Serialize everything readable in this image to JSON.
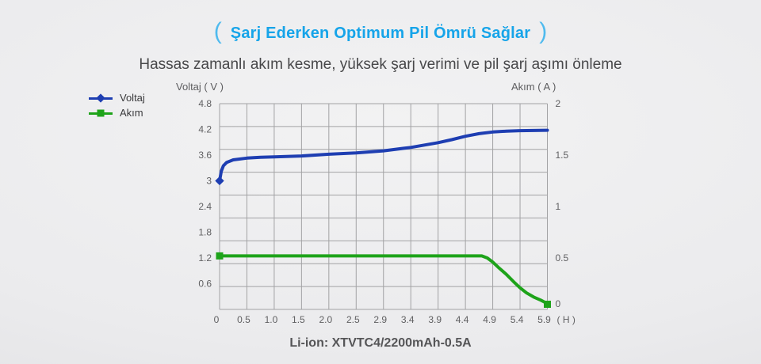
{
  "page": {
    "title": "Şarj Ederken Optimum Pil Ömrü Sağlar",
    "title_bracket_left": "(",
    "title_bracket_right": ")",
    "subtitle": "Hassas zamanlı akım kesme, yüksek şarj verimi ve pil şarj aşımı önleme",
    "caption": "Li-ion: XTVTC4/2200mAh-0.5A"
  },
  "colors": {
    "title_blue": "#16a4e9",
    "bracket_blue": "#4fbaee",
    "voltage_blue": "#1e3eb2",
    "current_green": "#1ea31a",
    "grid_gray": "#a2a2a4",
    "text_gray": "#5d5d5f"
  },
  "legend": {
    "items": [
      {
        "label": "Voltaj",
        "marker": "diamond",
        "color": "#1e3eb2"
      },
      {
        "label": "Akım",
        "marker": "square",
        "color": "#1ea31a"
      }
    ]
  },
  "chart_data": {
    "type": "line",
    "grid": true,
    "x_axis": {
      "unit_label": "( H )",
      "tick_labels": [
        "0",
        "0.5",
        "1.0",
        "1.5",
        "2.0",
        "2.5",
        "2.9",
        "3.4",
        "3.9",
        "4.4",
        "4.9",
        "5.4",
        "5.9"
      ]
    },
    "y_left": {
      "label": "Voltaj ( V )",
      "min": 0,
      "max": 4.8,
      "tick_labels": [
        "4.8",
        "4.2",
        "3.6",
        "3",
        "2.4",
        "1.8",
        "1.2",
        "0.6"
      ]
    },
    "y_right": {
      "label": "Akım ( A )",
      "min": 0,
      "max": 2,
      "tick_labels": [
        "2",
        "1.5",
        "1",
        "0.5",
        "0"
      ]
    },
    "series": [
      {
        "name": "Voltaj",
        "axis": "left",
        "color": "#1e3eb2",
        "marker": "diamond",
        "marker_at": [
          "first"
        ],
        "points": [
          [
            0,
            3.0
          ],
          [
            0.03,
            3.22
          ],
          [
            0.07,
            3.35
          ],
          [
            0.13,
            3.43
          ],
          [
            0.25,
            3.49
          ],
          [
            0.5,
            3.53
          ],
          [
            0.75,
            3.55
          ],
          [
            1.0,
            3.56
          ],
          [
            1.5,
            3.58
          ],
          [
            2.0,
            3.62
          ],
          [
            2.5,
            3.65
          ],
          [
            2.9,
            3.7
          ],
          [
            3.4,
            3.78
          ],
          [
            3.9,
            3.89
          ],
          [
            4.15,
            3.96
          ],
          [
            4.4,
            4.04
          ],
          [
            4.65,
            4.1
          ],
          [
            4.9,
            4.14
          ],
          [
            5.15,
            4.16
          ],
          [
            5.4,
            4.17
          ],
          [
            5.9,
            4.18
          ]
        ]
      },
      {
        "name": "Akım",
        "axis": "right",
        "color": "#1ea31a",
        "marker": "square",
        "marker_at": [
          "first",
          "last"
        ],
        "points": [
          [
            0,
            0.52
          ],
          [
            1.0,
            0.52
          ],
          [
            2.0,
            0.52
          ],
          [
            2.9,
            0.52
          ],
          [
            3.9,
            0.52
          ],
          [
            4.4,
            0.52
          ],
          [
            4.7,
            0.52
          ],
          [
            4.8,
            0.5
          ],
          [
            4.9,
            0.46
          ],
          [
            5.0,
            0.41
          ],
          [
            5.15,
            0.34
          ],
          [
            5.28,
            0.27
          ],
          [
            5.4,
            0.21
          ],
          [
            5.52,
            0.16
          ],
          [
            5.65,
            0.12
          ],
          [
            5.78,
            0.09
          ],
          [
            5.85,
            0.07
          ],
          [
            5.9,
            0.05
          ]
        ]
      }
    ]
  }
}
